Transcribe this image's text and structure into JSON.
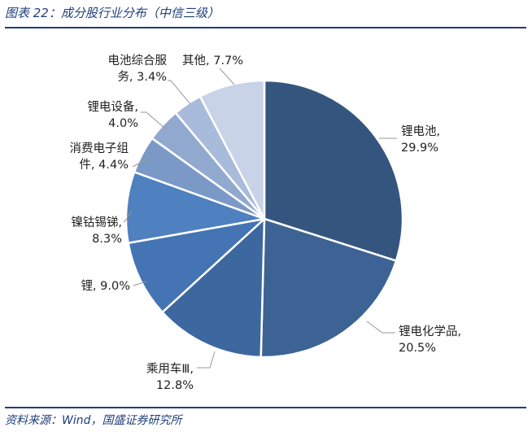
{
  "figure_title": "图表 22：成分股行业分布（中信三级）",
  "source_note": "资料来源：Wind，国盛证券研究所",
  "colors": {
    "title": "#1f3e7a",
    "rule": "#1f3e7a",
    "leader": "#999999"
  },
  "chart_data": {
    "type": "pie",
    "start_angle_deg": 90,
    "direction": "clockwise",
    "slices": [
      {
        "label_lines": [
          "锂电池,",
          "29.9%"
        ],
        "value": 29.9,
        "color": "#34567e"
      },
      {
        "label_lines": [
          "锂电化学品,",
          "20.5%"
        ],
        "value": 20.5,
        "color": "#3c6393"
      },
      {
        "label_lines": [
          "乘用车Ⅲ,",
          "12.8%"
        ],
        "value": 12.8,
        "color": "#3d679f"
      },
      {
        "label_lines": [
          "锂, 9.0%"
        ],
        "value": 9.0,
        "color": "#4474b3"
      },
      {
        "label_lines": [
          "镍钴锡锑,",
          "8.3%"
        ],
        "value": 8.3,
        "color": "#4f80bf"
      },
      {
        "label_lines": [
          "消费电子组",
          "件, 4.4%"
        ],
        "value": 4.4,
        "color": "#7a99c7"
      },
      {
        "label_lines": [
          "锂电设备,",
          "4.0%"
        ],
        "value": 4.0,
        "color": "#91a8cf"
      },
      {
        "label_lines": [
          "电池综合服",
          "务, 3.4%"
        ],
        "value": 3.4,
        "color": "#a8bbdb"
      },
      {
        "label_lines": [
          "其他, 7.7%"
        ],
        "value": 7.7,
        "color": "#c8d3e8"
      }
    ]
  }
}
